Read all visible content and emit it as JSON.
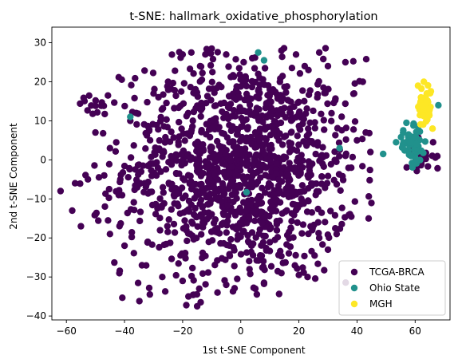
{
  "chart_data": {
    "type": "scatter",
    "title": "t-SNE: hallmark_oxidative_phosphorylation",
    "xlabel": "1st t-SNE Component",
    "ylabel": "2nd t-SNE Component",
    "xlim": [
      -65,
      72
    ],
    "ylim": [
      -41,
      34
    ],
    "xticks": [
      -60,
      -40,
      -20,
      0,
      20,
      40,
      60
    ],
    "yticks": [
      -40,
      -30,
      -20,
      -10,
      0,
      10,
      20,
      30
    ],
    "grid": false,
    "legend_position": "lower-right",
    "series": [
      {
        "name": "TCGA-BRCA",
        "color": "#440154",
        "clusters": [
          {
            "cx": 0,
            "cy": -2,
            "sx": 20,
            "sy": 14,
            "n": 1300,
            "xr": [
              -60,
              45
            ],
            "yr": [
              -38,
              29
            ]
          },
          {
            "cx": -52,
            "cy": 15,
            "sx": 3,
            "sy": 1.5,
            "n": 8,
            "xr": [
              -58,
              -47
            ],
            "yr": [
              12,
              18
            ]
          },
          {
            "cx": 62,
            "cy": 1,
            "sx": 2.5,
            "sy": 2.5,
            "n": 25,
            "xr": [
              57,
              68
            ],
            "yr": [
              -3,
              6
            ]
          }
        ],
        "points": [
          [
            -43.5,
            -26.3
          ],
          [
            -18,
            -35
          ],
          [
            -15,
            -37.5
          ],
          [
            -26,
            -33.7
          ],
          [
            -20,
            -31
          ],
          [
            -27,
            -30
          ],
          [
            -8,
            -34
          ],
          [
            -5,
            -32
          ],
          [
            5,
            -33
          ],
          [
            8,
            -31.5
          ],
          [
            14,
            -29
          ],
          [
            3,
            -28
          ],
          [
            20,
            -29.5
          ],
          [
            27,
            -20
          ],
          [
            30,
            -23
          ],
          [
            -45,
            3
          ],
          [
            -50,
            7
          ],
          [
            -38,
            10
          ],
          [
            -36,
            12
          ],
          [
            44,
            -15
          ],
          [
            43,
            7
          ],
          [
            39,
            17
          ],
          [
            42,
            20
          ],
          [
            36,
            25
          ],
          [
            27,
            27.5
          ],
          [
            30,
            24
          ],
          [
            -17,
            27.5
          ],
          [
            -20,
            27
          ],
          [
            -10,
            28.5
          ],
          [
            -5,
            27
          ],
          [
            1,
            25
          ],
          [
            14,
            28
          ],
          [
            19,
            27
          ],
          [
            -57,
            -6
          ],
          [
            -62,
            -8
          ],
          [
            -58,
            -13
          ],
          [
            -55,
            -17
          ],
          [
            -50,
            -14
          ],
          [
            -45,
            -19
          ],
          [
            -40,
            -22
          ],
          [
            -34,
            -27
          ],
          [
            -32,
            -21
          ],
          [
            -47,
            -4
          ],
          [
            -42,
            -9
          ],
          [
            23,
            -30
          ],
          [
            33,
            -19
          ],
          [
            38,
            -2
          ],
          [
            40,
            5
          ],
          [
            -25,
            20
          ],
          [
            -30,
            17
          ],
          [
            -14,
            24
          ],
          [
            6,
            22
          ],
          [
            10,
            18
          ],
          [
            22,
            24
          ]
        ]
      },
      {
        "name": "Ohio State",
        "color": "#21918c",
        "clusters": [
          {
            "cx": 59,
            "cy": 3,
            "sx": 2.5,
            "sy": 2.5,
            "n": 55,
            "xr": [
              53,
              66
            ],
            "yr": [
              -2,
              10
            ]
          }
        ],
        "points": [
          [
            6,
            27.5
          ],
          [
            8,
            25.5
          ],
          [
            -38,
            11
          ],
          [
            34,
            3
          ],
          [
            49,
            1.5
          ],
          [
            2,
            -8.3
          ],
          [
            68,
            14
          ],
          [
            57,
            9.5
          ],
          [
            61,
            8.5
          ]
        ]
      },
      {
        "name": "MGH",
        "color": "#fde725",
        "clusters": [
          {
            "cx": 63.5,
            "cy": 14,
            "sx": 1.2,
            "sy": 2.8,
            "n": 45,
            "xr": [
              60.5,
              67
            ],
            "yr": [
              7.5,
              20.5
            ]
          }
        ],
        "points": [
          [
            63,
            20
          ],
          [
            61,
            19
          ],
          [
            64,
            17
          ],
          [
            66,
            8
          ],
          [
            62,
            16
          ],
          [
            65,
            13
          ]
        ]
      }
    ]
  }
}
